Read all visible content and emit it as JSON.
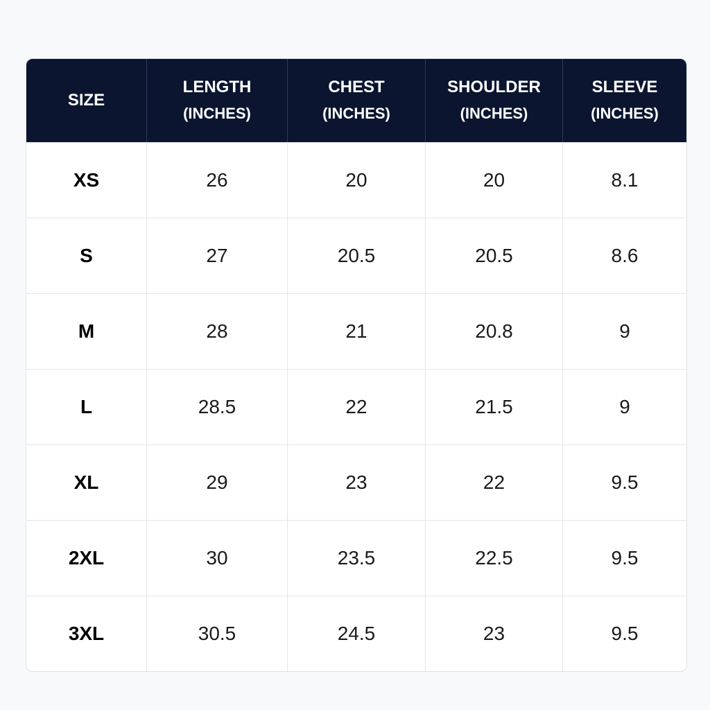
{
  "table": {
    "headers": [
      {
        "line1": "SIZE",
        "line2": ""
      },
      {
        "line1": "LENGTH",
        "line2": "(INCHES)"
      },
      {
        "line1": "CHEST",
        "line2": "(INCHES)"
      },
      {
        "line1": "SHOULDER",
        "line2": "(INCHES)"
      },
      {
        "line1": "SLEEVE",
        "line2": "(INCHES)"
      }
    ],
    "rows": [
      {
        "size": "XS",
        "length": "26",
        "chest": "20",
        "shoulder": "20",
        "sleeve": "8.1"
      },
      {
        "size": "S",
        "length": "27",
        "chest": "20.5",
        "shoulder": "20.5",
        "sleeve": "8.6"
      },
      {
        "size": "M",
        "length": "28",
        "chest": "21",
        "shoulder": "20.8",
        "sleeve": "9"
      },
      {
        "size": "L",
        "length": "28.5",
        "chest": "22",
        "shoulder": "21.5",
        "sleeve": "9"
      },
      {
        "size": "XL",
        "length": "29",
        "chest": "23",
        "shoulder": "22",
        "sleeve": "9.5"
      },
      {
        "size": "2XL",
        "length": "30",
        "chest": "23.5",
        "shoulder": "22.5",
        "sleeve": "9.5"
      },
      {
        "size": "3XL",
        "length": "30.5",
        "chest": "24.5",
        "shoulder": "23",
        "sleeve": "9.5"
      }
    ]
  },
  "colors": {
    "header_background": "#0b1530",
    "header_text": "#ffffff",
    "body_text": "#1a1a1a",
    "grid_line": "#e3e6ea",
    "page_background": "#f8f9fa"
  }
}
